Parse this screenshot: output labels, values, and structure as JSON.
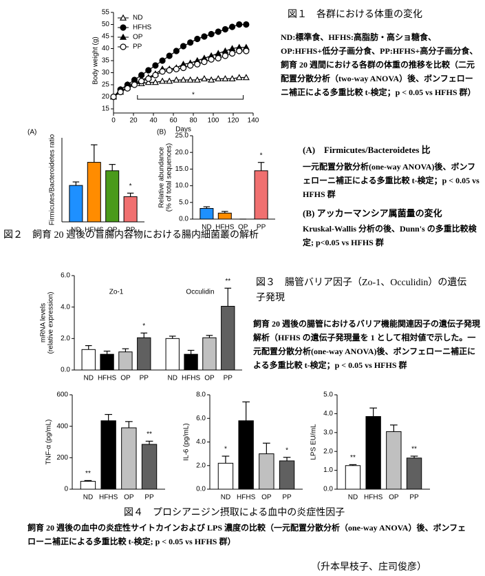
{
  "chart_data": [
    {
      "type": "line",
      "ylabel": "Body weight (g)",
      "xlabel": "Days",
      "annotation": "*",
      "x": [
        0,
        7,
        14,
        21,
        28,
        35,
        42,
        49,
        56,
        63,
        70,
        77,
        84,
        91,
        98,
        105,
        112,
        119,
        126,
        133
      ],
      "xlim": [
        0,
        140
      ],
      "xticks": [
        0,
        20,
        40,
        60,
        80,
        100,
        120,
        140
      ],
      "ylim": [
        15,
        55
      ],
      "yticks": [
        15,
        20,
        25,
        30,
        35,
        40,
        45,
        50,
        55
      ],
      "series": [
        {
          "name": "ND",
          "marker": "open-triangle",
          "color": "#000000",
          "values": [
            20,
            23,
            25,
            25.5,
            25.5,
            26,
            26,
            26.5,
            26.5,
            27,
            27,
            27,
            27,
            27.5,
            27,
            27.5,
            27.5,
            27.5,
            28,
            28
          ]
        },
        {
          "name": "HFHS",
          "marker": "filled-circle",
          "color": "#000000",
          "values": [
            20,
            23,
            25,
            27,
            29,
            31,
            33,
            35,
            37,
            39,
            41,
            42.5,
            44,
            45,
            46,
            47,
            48,
            49,
            50,
            50
          ]
        },
        {
          "name": "OP",
          "marker": "filled-triangle",
          "color": "#000000",
          "values": [
            20,
            22,
            24,
            25.5,
            27,
            28,
            29.5,
            31.5,
            31.5,
            32,
            33.5,
            34,
            35,
            36,
            37,
            38,
            39,
            40,
            40.5,
            40.5
          ]
        },
        {
          "name": "PP",
          "marker": "open-circle",
          "color": "#000000",
          "values": [
            20,
            22,
            23.5,
            25,
            26.5,
            27.5,
            29,
            30.5,
            31,
            31.5,
            32,
            33,
            33.5,
            34.5,
            35.5,
            36,
            37,
            38,
            39,
            39
          ]
        }
      ]
    },
    {
      "type": "bar",
      "panel": "(A)",
      "ylabel": [
        "Firmicutes/Bacteroidetes ratio"
      ],
      "ylim": [
        0,
        12
      ],
      "categories": [
        "ND",
        "HFHS",
        "OP",
        "PP"
      ],
      "colors": [
        "#1e90ff",
        "#ff8c00",
        "#4a9a1a",
        "#f07070"
      ],
      "groups": [
        {
          "values": [
            5.2,
            8.5,
            7.3,
            3.6
          ],
          "errors": [
            0.5,
            2.5,
            0.9,
            0.5
          ],
          "annotations": [
            null,
            null,
            null,
            "*"
          ]
        }
      ]
    },
    {
      "type": "bar",
      "panel": "(B)",
      "ylabel": [
        "Relative abundance",
        "(% of total sequences)"
      ],
      "ylim": [
        0,
        25
      ],
      "yticks": [
        {
          "value": 0,
          "label": "0.0"
        },
        {
          "value": 5,
          "label": "5.0"
        },
        {
          "value": 10,
          "label": "10.0"
        },
        {
          "value": 15,
          "label": "15.0"
        },
        {
          "value": 20,
          "label": "20.0"
        },
        {
          "value": 25,
          "label": "25.0"
        }
      ],
      "categories": [
        "ND",
        "HFHS",
        "OP",
        "PP"
      ],
      "colors": [
        "#1e90ff",
        "#ff8c00",
        "#4a9a1a",
        "#f07070"
      ],
      "groups": [
        {
          "values": [
            3.2,
            1.8,
            0,
            14.5
          ],
          "errors": [
            0.5,
            0.5,
            0,
            2.5
          ],
          "annotations": [
            null,
            null,
            null,
            "*"
          ]
        }
      ]
    },
    {
      "type": "bar",
      "ylabel": [
        "mRNA levels",
        "(relative expression)"
      ],
      "ylim": [
        0,
        6
      ],
      "yticks": [
        {
          "value": 0,
          "label": "0.0"
        },
        {
          "value": 2,
          "label": "2.0"
        },
        {
          "value": 4,
          "label": "4.0"
        },
        {
          "value": 6,
          "label": "6.0"
        }
      ],
      "categories": [
        "ND",
        "HFHS",
        "OP",
        "PP"
      ],
      "colors": [
        "#ffffff",
        "#000000",
        "#c0c0c0",
        "#606060"
      ],
      "groups": [
        {
          "name": "Zo-1",
          "values": [
            1.3,
            1.0,
            1.15,
            2.05
          ],
          "errors": [
            0.25,
            0.2,
            0.2,
            0.3
          ],
          "annotations": [
            null,
            null,
            null,
            "*"
          ]
        },
        {
          "name": "Occulidin",
          "values": [
            2.0,
            1.0,
            2.05,
            4.05
          ],
          "errors": [
            0.15,
            0.25,
            0.15,
            1.15
          ],
          "annotations": [
            null,
            null,
            null,
            "**"
          ]
        }
      ]
    },
    {
      "type": "bar",
      "ylabel": [
        "TNF-α (pg/mL)"
      ],
      "ylim": [
        0,
        600
      ],
      "yticks": [
        0,
        200,
        400,
        600
      ],
      "categories": [
        "ND",
        "HFHS",
        "OP",
        "PP"
      ],
      "colors": [
        "#ffffff",
        "#000000",
        "#c0c0c0",
        "#606060"
      ],
      "groups": [
        {
          "values": [
            50,
            435,
            390,
            285
          ],
          "errors": [
            5,
            40,
            40,
            20
          ],
          "annotations": [
            "**",
            null,
            null,
            "**"
          ]
        }
      ]
    },
    {
      "type": "bar",
      "ylabel": [
        "IL-6 (pg/mL)"
      ],
      "ylim": [
        0,
        8
      ],
      "yticks": [
        {
          "value": 0,
          "label": "0.0"
        },
        {
          "value": 2,
          "label": "2.0"
        },
        {
          "value": 4,
          "label": "4.0"
        },
        {
          "value": 6,
          "label": "6.0"
        },
        {
          "value": 8,
          "label": "8.0"
        }
      ],
      "categories": [
        "ND",
        "HFHS",
        "OP",
        "PP"
      ],
      "colors": [
        "#ffffff",
        "#000000",
        "#c0c0c0",
        "#606060"
      ],
      "groups": [
        {
          "values": [
            2.2,
            5.8,
            3.0,
            2.4
          ],
          "errors": [
            0.6,
            1.6,
            0.9,
            0.3
          ],
          "annotations": [
            "*",
            null,
            null,
            "*"
          ]
        }
      ]
    },
    {
      "type": "bar",
      "ylabel": [
        "LPS EU/mL"
      ],
      "ylim": [
        0,
        5
      ],
      "yticks": [
        {
          "value": 0,
          "label": "0.0"
        },
        {
          "value": 1,
          "label": "1.0"
        },
        {
          "value": 2,
          "label": "2.0"
        },
        {
          "value": 3,
          "label": "3.0"
        },
        {
          "value": 4,
          "label": "4.0"
        },
        {
          "value": 5,
          "label": "5.0"
        }
      ],
      "categories": [
        "ND",
        "HFHS",
        "OP",
        "PP"
      ],
      "colors": [
        "#ffffff",
        "#000000",
        "#c0c0c0",
        "#606060"
      ],
      "groups": [
        {
          "values": [
            1.25,
            3.85,
            3.05,
            1.65
          ],
          "errors": [
            0.05,
            0.45,
            0.35,
            0.1
          ],
          "annotations": [
            "**",
            null,
            null,
            "**"
          ]
        }
      ]
    }
  ],
  "captions": {
    "fig1": {
      "title": "図１　各群における体重の変化",
      "body": "ND:標準食、HFHS:高脂肪・高ショ糖食、OP:HFHS+低分子画分食、PP:HFHS+高分子画分食、飼育 20 週間における各群の体重の推移を比較（二元配置分散分析（two-way ANOVA）後、ボンフェローニ補正による多重比較 t-検定；p < 0.05 vs HFHS 群）"
    },
    "fig2": {
      "title": "図２　飼育 20 週後の盲腸内容物における腸内細菌叢の解析",
      "a_title": "(A)　Firmicutes/Bacteroidetes 比",
      "a_body": "一元配置分散分析(one-way ANOVA)後、ボンフェローニ補正による多重比較 t-検定；p < 0.05 vs HFHS 群",
      "b_title": "(B) アッカーマンシア属菌量の変化",
      "b_body": "Kruskal-Wallis 分析の後、Dunn's の多重比較検定; p<0.05 vs HFHS 群"
    },
    "fig3": {
      "title": "図３　腸管バリア因子（Zo-1、Occulidin）の遺伝子発現",
      "body": "飼育 20 週後の腸管におけるバリア機能関連因子の遺伝子発現解析（HFHS の遺伝子発現量を 1 として相対値で示した。一元配置分散分析(one-way ANOVA)後、ボンフェローニ補正による多重比較 t-検定；p < 0.05 vs HFHS 群"
    },
    "fig4": {
      "title": "図４　プロシアニジン摂取による血中の炎症性因子",
      "body": "飼育 20 週後の血中の炎症性サイトカインおよび LPS 濃度の比較（一元配置分散分析（one-way ANOVA）後、ボンフェローニ補正による多重比較 t-検定; p < 0.05 vs HFHS 群）"
    },
    "authors": "（升本早枝子、庄司俊彦）"
  }
}
